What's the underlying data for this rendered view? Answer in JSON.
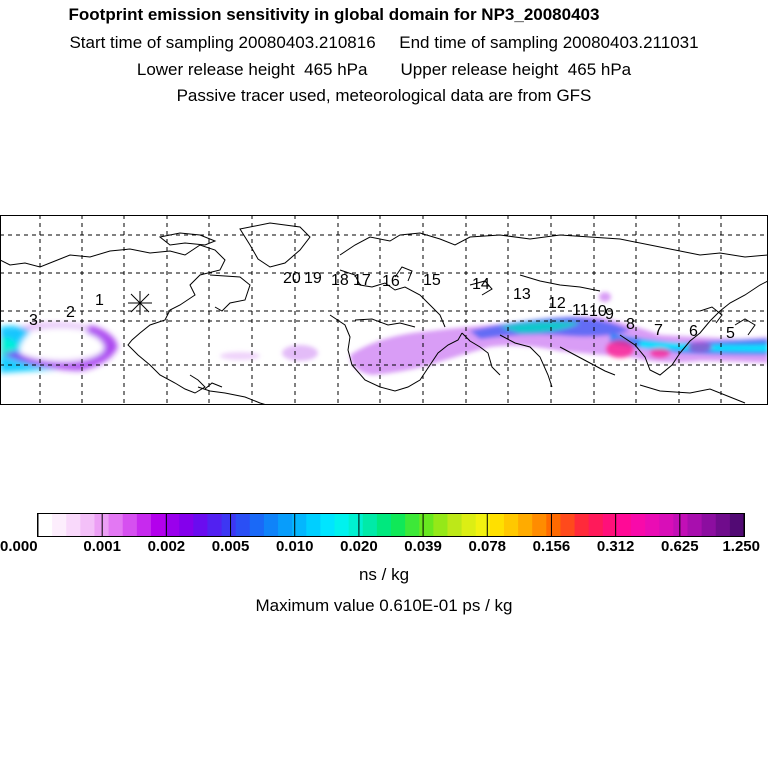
{
  "header": {
    "title": "Footprint emission sensitivity in global domain for NP3_20080403",
    "sampling": "Start time of sampling 20080403.210816     End time of sampling 20080403.211031",
    "release_height": "Lower release height  465 hPa       Upper release height  465 hPa",
    "tracer_note": "Passive tracer used, meteorological data are from GFS"
  },
  "map": {
    "trajectory_labels": [
      "20",
      "19",
      "18",
      "17",
      "16",
      "15",
      "14",
      "13",
      "12",
      "11",
      "10",
      "9",
      "8",
      "7",
      "6",
      "5",
      "3",
      "2",
      "1"
    ],
    "release_marker": "release-point-asterisk"
  },
  "colorbar": {
    "tick_labels": [
      "0.000",
      "0.001",
      "0.002",
      "0.005",
      "0.010",
      "0.020",
      "0.039",
      "0.078",
      "0.156",
      "0.312",
      "0.625",
      "1.250"
    ],
    "colors": [
      "#ffffff",
      "#fdeefd",
      "#f9d9fb",
      "#f3c0f8",
      "#ec9ff5",
      "#e378f3",
      "#d650f0",
      "#c72aee",
      "#b300ec",
      "#9a00ec",
      "#8400ec",
      "#6a0cef",
      "#5221f1",
      "#3d37f3",
      "#2a4ff5",
      "#1a69f7",
      "#0f83f9",
      "#089dfb",
      "#04b6fd",
      "#00cfff",
      "#00e5ff",
      "#00f2ee",
      "#00f0d0",
      "#00eaa8",
      "#00e87e",
      "#10e858",
      "#3de838",
      "#68e820",
      "#95e818",
      "#bde818",
      "#dcee14",
      "#f2f210",
      "#ffe000",
      "#ffc800",
      "#ffab00",
      "#ff8c00",
      "#ff6a00",
      "#ff4a1c",
      "#ff2a3a",
      "#ff1a5a",
      "#ff107a",
      "#ff0a96",
      "#f80aaa",
      "#ea0cb4",
      "#d80eb8",
      "#c20fb6",
      "#a80fae",
      "#8c0ea0",
      "#700c8c",
      "#520a74"
    ],
    "unit": "ns / kg",
    "max_value": "Maximum value  0.610E-01 ps / kg"
  }
}
